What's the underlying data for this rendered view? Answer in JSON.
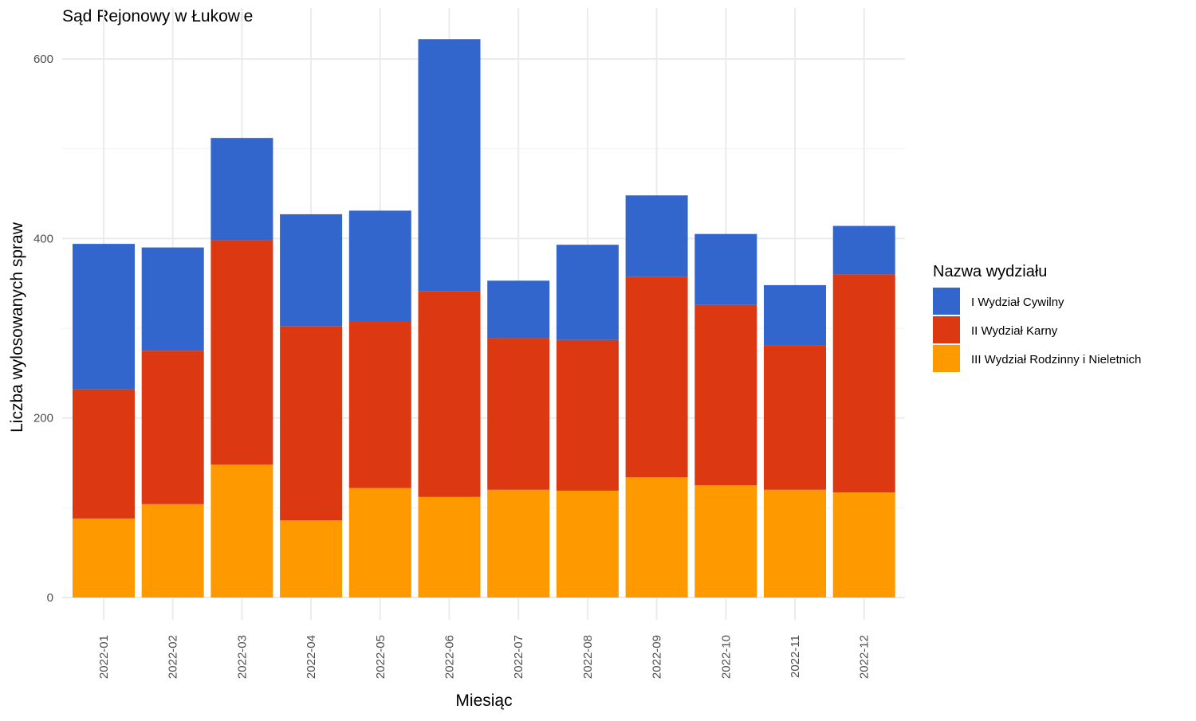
{
  "chart_data": {
    "type": "bar",
    "stacked": true,
    "title": "Sąd Rejonowy w Łukowie",
    "xlabel": "Miesiąc",
    "ylabel": "Liczba wylosowanych spraw",
    "ylim": [
      0,
      625
    ],
    "yticks": [
      "0",
      "200",
      "400",
      "600"
    ],
    "ytick_values": [
      0,
      200,
      400,
      600
    ],
    "grid": true,
    "legend_title": "Nazwa wydziału",
    "legend_position": "right",
    "categories": [
      "2022-01",
      "2022-02",
      "2022-03",
      "2022-04",
      "2022-05",
      "2022-06",
      "2022-07",
      "2022-08",
      "2022-09",
      "2022-10",
      "2022-11",
      "2022-12"
    ],
    "series": [
      {
        "name": "III Wydział Rodzinny i Nieletnich",
        "color": "#FF9900",
        "values": [
          88,
          104,
          148,
          86,
          122,
          112,
          120,
          119,
          134,
          125,
          120,
          117
        ]
      },
      {
        "name": "II Wydział Karny",
        "color": "#DC3912",
        "values": [
          144,
          171,
          250,
          216,
          186,
          229,
          169,
          168,
          223,
          201,
          161,
          243
        ]
      },
      {
        "name": "I Wydział Cywilny",
        "color": "#3366CC",
        "values": [
          162,
          115,
          114,
          125,
          123,
          281,
          64,
          106,
          91,
          79,
          67,
          54
        ]
      }
    ],
    "legend_order": [
      "I Wydział Cywilny",
      "II Wydział Karny",
      "III Wydział Rodzinny i Nieletnich"
    ]
  }
}
